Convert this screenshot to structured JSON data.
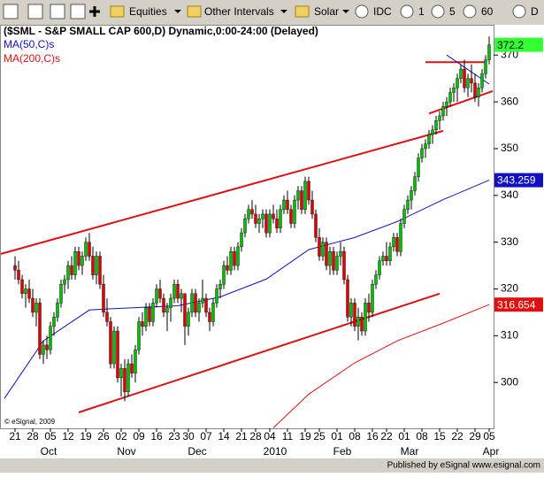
{
  "toolbar": {
    "dropdowns": [
      "Equities",
      "Other Intervals",
      "Solar"
    ],
    "intervals": [
      "IDC",
      "1",
      "5",
      "60",
      "D"
    ]
  },
  "footer": "Published by eSignal www.esignal.com",
  "chart_data": {
    "type": "candlestick",
    "title": "($SML - S&P SMALL CAP 600,D) Dynamic,0:00-24:00 (Delayed)",
    "watermark": "© eSignal, 2009",
    "up_color": "#00c000",
    "down_color": "#e00000",
    "ylim": [
      290.2,
      376.1
    ],
    "yticks": [
      300,
      310,
      320,
      330,
      340,
      350,
      360,
      370
    ],
    "categories": [
      "21",
      null,
      null,
      null,
      null,
      "28",
      null,
      null,
      null,
      null,
      "05",
      null,
      null,
      null,
      null,
      "12",
      null,
      null,
      null,
      null,
      "19",
      null,
      null,
      null,
      null,
      "26",
      null,
      null,
      null,
      null,
      "02",
      null,
      null,
      null,
      null,
      "09",
      null,
      null,
      null,
      null,
      "16",
      null,
      null,
      null,
      null,
      "23",
      null,
      null,
      null,
      "30",
      null,
      null,
      null,
      null,
      "07",
      null,
      null,
      null,
      null,
      "14",
      null,
      null,
      null,
      null,
      "21",
      null,
      null,
      null,
      "28",
      null,
      null,
      null,
      "04",
      null,
      null,
      null,
      null,
      "11",
      null,
      null,
      null,
      null,
      "19",
      null,
      null,
      null,
      "25",
      null,
      null,
      null,
      null,
      "01",
      null,
      null,
      null,
      null,
      "08",
      null,
      null,
      null,
      null,
      "16",
      null,
      null,
      null,
      "22",
      null,
      null,
      null,
      null,
      "01",
      null,
      null,
      null,
      null,
      "08",
      null,
      null,
      null,
      null,
      "15",
      null,
      null,
      null,
      null,
      "22",
      null,
      null,
      null,
      null,
      "29",
      null,
      null,
      null,
      "05"
    ],
    "months": [
      null,
      null,
      null,
      null,
      null,
      null,
      null,
      null,
      "Oct",
      null,
      null,
      null,
      null,
      null,
      null,
      null,
      null,
      null,
      null,
      null,
      null,
      null,
      null,
      null,
      null,
      null,
      null,
      null,
      null,
      null,
      "Nov",
      null,
      null,
      null,
      null,
      null,
      null,
      null,
      null,
      null,
      null,
      null,
      null,
      null,
      null,
      null,
      null,
      null,
      null,
      null,
      "Dec",
      null,
      null,
      null,
      null,
      null,
      null,
      null,
      null,
      null,
      null,
      null,
      null,
      null,
      null,
      null,
      null,
      null,
      null,
      null,
      null,
      null,
      "2010",
      null,
      null,
      null,
      null,
      null,
      null,
      null,
      null,
      null,
      null,
      null,
      null,
      null,
      null,
      null,
      null,
      null,
      null,
      "Feb",
      null,
      null,
      null,
      null,
      null,
      null,
      null,
      null,
      null,
      null,
      null,
      null,
      null,
      null,
      null,
      null,
      null,
      null,
      "Mar",
      null,
      null,
      null,
      null,
      null,
      null,
      null,
      null,
      null,
      null,
      null,
      null,
      null,
      null,
      null,
      null,
      null,
      null,
      null,
      null,
      null,
      null,
      "Apr",
      null
    ],
    "candles": [
      [
        325,
        327,
        322,
        324
      ],
      [
        324,
        326,
        321,
        322
      ],
      [
        322,
        323,
        318,
        319
      ],
      [
        319,
        321,
        316,
        320
      ],
      [
        320,
        322,
        317,
        318
      ],
      [
        318,
        320,
        314,
        315
      ],
      [
        315,
        318,
        312,
        317
      ],
      [
        317,
        318,
        305,
        306
      ],
      [
        306,
        309,
        304,
        308
      ],
      [
        308,
        310,
        305,
        307
      ],
      [
        307,
        313,
        306,
        312
      ],
      [
        312,
        315,
        310,
        314
      ],
      [
        314,
        318,
        313,
        317
      ],
      [
        317,
        322,
        316,
        321
      ],
      [
        321,
        323,
        319,
        322
      ],
      [
        322,
        326,
        320,
        325
      ],
      [
        325,
        327,
        322,
        323
      ],
      [
        323,
        329,
        322,
        328
      ],
      [
        328,
        329,
        324,
        325
      ],
      [
        325,
        328,
        323,
        327
      ],
      [
        327,
        331,
        326,
        330
      ],
      [
        330,
        332,
        326,
        327
      ],
      [
        327,
        329,
        322,
        323
      ],
      [
        323,
        328,
        321,
        327
      ],
      [
        327,
        328,
        320,
        321
      ],
      [
        321,
        323,
        314,
        315
      ],
      [
        315,
        318,
        312,
        313
      ],
      [
        313,
        314,
        303,
        304
      ],
      [
        304,
        312,
        303,
        311
      ],
      [
        311,
        312,
        300,
        301
      ],
      [
        301,
        304,
        297,
        303
      ],
      [
        303,
        305,
        296,
        298
      ],
      [
        298,
        305,
        297,
        304
      ],
      [
        304,
        306,
        301,
        302
      ],
      [
        302,
        308,
        300,
        307
      ],
      [
        307,
        314,
        306,
        313
      ],
      [
        313,
        315,
        310,
        312
      ],
      [
        312,
        317,
        311,
        316
      ],
      [
        316,
        317,
        312,
        313
      ],
      [
        313,
        318,
        312,
        317
      ],
      [
        317,
        321,
        316,
        320
      ],
      [
        320,
        322,
        317,
        318
      ],
      [
        318,
        319,
        314,
        315
      ],
      [
        315,
        317,
        311,
        316
      ],
      [
        316,
        319,
        313,
        318
      ],
      [
        318,
        322,
        317,
        321
      ],
      [
        321,
        322,
        317,
        318
      ],
      [
        318,
        320,
        315,
        319
      ],
      [
        319,
        319,
        308,
        312
      ],
      [
        312,
        316,
        310,
        315
      ],
      [
        315,
        320,
        314,
        319
      ],
      [
        319,
        320,
        314,
        315
      ],
      [
        315,
        318,
        313,
        317
      ],
      [
        317,
        322,
        316,
        318
      ],
      [
        318,
        319,
        314,
        315
      ],
      [
        315,
        316,
        311,
        313
      ],
      [
        313,
        318,
        312,
        317
      ],
      [
        317,
        321,
        316,
        320
      ],
      [
        320,
        322,
        318,
        321
      ],
      [
        321,
        326,
        320,
        325
      ],
      [
        325,
        327,
        323,
        324
      ],
      [
        324,
        329,
        323,
        328
      ],
      [
        328,
        329,
        324,
        325
      ],
      [
        325,
        330,
        324,
        329
      ],
      [
        329,
        333,
        328,
        332
      ],
      [
        332,
        336,
        331,
        335
      ],
      [
        335,
        338,
        334,
        337
      ],
      [
        337,
        339,
        335,
        336
      ],
      [
        336,
        338,
        333,
        334
      ],
      [
        334,
        336,
        332,
        335
      ],
      [
        335,
        337,
        333,
        336
      ],
      [
        336,
        337,
        331,
        332
      ],
      [
        332,
        337,
        331,
        336
      ],
      [
        336,
        338,
        334,
        335
      ],
      [
        335,
        337,
        332,
        333
      ],
      [
        333,
        338,
        332,
        337
      ],
      [
        337,
        340,
        336,
        339
      ],
      [
        339,
        341,
        336,
        337
      ],
      [
        337,
        338,
        333,
        334
      ],
      [
        334,
        340,
        333,
        339
      ],
      [
        339,
        342,
        337,
        341
      ],
      [
        341,
        342,
        336,
        337
      ],
      [
        337,
        344,
        336,
        343
      ],
      [
        343,
        344,
        338,
        339
      ],
      [
        339,
        341,
        335,
        336
      ],
      [
        336,
        337,
        330,
        331
      ],
      [
        331,
        333,
        326,
        327
      ],
      [
        327,
        331,
        326,
        330
      ],
      [
        330,
        331,
        324,
        325
      ],
      [
        325,
        329,
        323,
        328
      ],
      [
        328,
        329,
        323,
        324
      ],
      [
        324,
        328,
        323,
        327
      ],
      [
        327,
        330,
        325,
        328
      ],
      [
        328,
        329,
        321,
        322
      ],
      [
        322,
        323,
        313,
        314
      ],
      [
        314,
        318,
        312,
        317
      ],
      [
        317,
        318,
        311,
        312
      ],
      [
        312,
        316,
        309,
        314
      ],
      [
        314,
        315,
        310,
        311
      ],
      [
        311,
        318,
        310,
        317
      ],
      [
        317,
        319,
        313,
        315
      ],
      [
        315,
        322,
        314,
        321
      ],
      [
        321,
        324,
        320,
        323
      ],
      [
        323,
        327,
        322,
        326
      ],
      [
        326,
        328,
        325,
        327
      ],
      [
        327,
        330,
        325,
        326
      ],
      [
        326,
        330,
        325,
        329
      ],
      [
        329,
        332,
        328,
        331
      ],
      [
        331,
        332,
        327,
        328
      ],
      [
        328,
        335,
        327,
        334
      ],
      [
        334,
        338,
        333,
        337
      ],
      [
        337,
        340,
        336,
        339
      ],
      [
        339,
        342,
        337,
        341
      ],
      [
        341,
        345,
        340,
        344
      ],
      [
        344,
        349,
        343,
        348
      ],
      [
        348,
        351,
        347,
        350
      ],
      [
        350,
        352,
        348,
        351
      ],
      [
        351,
        354,
        350,
        353
      ],
      [
        353,
        355,
        351,
        354
      ],
      [
        354,
        357,
        353,
        356
      ],
      [
        356,
        358,
        354,
        357
      ],
      [
        357,
        360,
        356,
        359
      ],
      [
        359,
        361,
        357,
        360
      ],
      [
        360,
        363,
        359,
        362
      ],
      [
        362,
        364,
        360,
        363
      ],
      [
        363,
        366,
        360,
        365
      ],
      [
        365,
        368,
        364,
        367
      ],
      [
        367,
        369,
        362,
        363
      ],
      [
        363,
        366,
        361,
        365
      ],
      [
        365,
        368,
        362,
        364
      ],
      [
        364,
        366,
        360,
        361
      ],
      [
        361,
        364,
        359,
        363
      ],
      [
        363,
        367,
        362,
        366
      ],
      [
        366,
        370,
        365,
        369
      ],
      [
        369,
        374,
        368,
        372.2
      ]
    ],
    "series": [
      {
        "name": "MA(50,C)s",
        "color": "#1010c0",
        "x": [
          -3,
          8,
          21,
          28,
          46,
          58,
          71,
          83,
          96,
          108,
          121,
          134
        ],
        "values": [
          296.6,
          308.9,
          315.5,
          315.8,
          316.4,
          318.3,
          322.1,
          328.4,
          331,
          334.4,
          339.1,
          343.259
        ]
      },
      {
        "name": "MA(200,C)s",
        "color": "#e01010",
        "x": [
          73,
          83,
          96,
          108,
          121,
          134
        ],
        "values": [
          290.3,
          297.5,
          304.2,
          308.9,
          312.7,
          316.654
        ]
      }
    ],
    "lines": [
      {
        "color": "#e01010",
        "x": [
          -4,
          121
        ],
        "y": [
          327.5,
          353.8
        ]
      },
      {
        "color": "#e01010",
        "x": [
          18,
          120
        ],
        "y": [
          293.6,
          319
        ]
      },
      {
        "color": "#e01010",
        "x": [
          116,
          133
        ],
        "y": [
          368.5,
          368.5
        ]
      },
      {
        "color": "#e01010",
        "x": [
          117,
          135
        ],
        "y": [
          357.5,
          362.3
        ]
      },
      {
        "color": "#1010c0",
        "x": [
          122,
          134
        ],
        "y": [
          370,
          363.8
        ]
      }
    ]
  }
}
